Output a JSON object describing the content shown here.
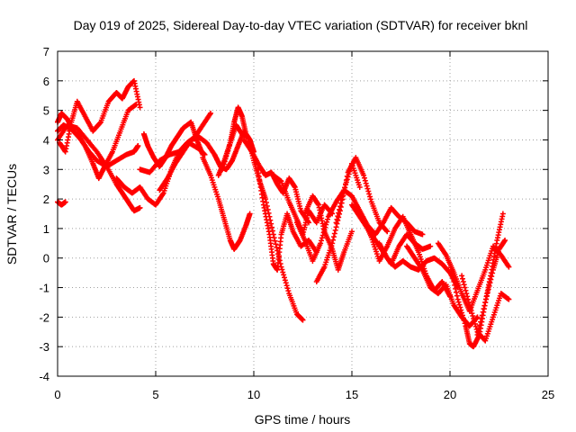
{
  "chart_data": {
    "type": "scatter",
    "title": "Day 019 of 2025, Sidereal Day-to-day VTEC variation (SDTVAR) for receiver bknl",
    "xlabel": "GPS time / hours",
    "ylabel": "SDTVAR / TECUs",
    "xlim": [
      0,
      25
    ],
    "ylim": [
      -4,
      7
    ],
    "xticks": [
      0,
      5,
      10,
      15,
      20,
      25
    ],
    "yticks": [
      -4,
      -3,
      -2,
      -1,
      0,
      1,
      2,
      3,
      4,
      5,
      6,
      7
    ],
    "grid": true,
    "marker": "+",
    "series": [
      {
        "name": "SDTVAR",
        "color": "#ff0000",
        "tracks": [
          {
            "x": [
              0.0,
              0.2,
              0.5,
              0.8,
              1.2,
              1.6,
              2.0,
              2.5,
              3.0,
              3.5,
              3.9,
              4.1
            ],
            "y": [
              4.6,
              4.9,
              4.7,
              4.3,
              4.0,
              3.6,
              3.3,
              3.1,
              3.3,
              3.5,
              3.6,
              3.8
            ]
          },
          {
            "x": [
              0.0,
              0.3,
              0.6,
              1.0,
              1.4,
              1.8,
              2.1,
              2.4,
              2.8,
              3.2,
              3.6,
              4.0
            ],
            "y": [
              4.3,
              4.5,
              4.4,
              4.2,
              3.8,
              3.2,
              2.7,
              3.1,
              3.6,
              4.3,
              5.0,
              5.2
            ]
          },
          {
            "x": [
              0.0,
              0.2,
              0.4
            ],
            "y": [
              1.9,
              1.8,
              1.9
            ]
          },
          {
            "x": [
              0.1,
              0.4,
              0.7,
              1.0,
              1.4,
              1.8,
              2.2,
              2.6,
              3.0,
              3.3,
              3.6,
              3.9,
              4.2
            ],
            "y": [
              3.9,
              3.6,
              4.6,
              5.3,
              4.8,
              4.3,
              4.6,
              5.3,
              5.6,
              5.4,
              5.8,
              6.0,
              5.1
            ]
          },
          {
            "x": [
              0.0,
              0.5,
              1.0,
              1.5,
              2.0,
              2.5,
              3.0,
              3.3,
              3.6,
              3.9,
              4.2
            ],
            "y": [
              4.0,
              4.5,
              4.4,
              4.0,
              3.6,
              3.1,
              2.5,
              2.2,
              1.9,
              1.6,
              1.7
            ]
          },
          {
            "x": [
              3.0,
              3.4,
              3.8,
              4.2,
              4.6,
              5.0,
              5.4,
              5.8,
              6.2,
              6.6,
              7.0,
              7.4,
              7.8
            ],
            "y": [
              2.7,
              2.4,
              2.2,
              2.4,
              2.0,
              1.8,
              2.2,
              3.0,
              3.6,
              3.9,
              4.1,
              4.5,
              4.9
            ]
          },
          {
            "x": [
              4.4,
              4.6,
              4.9,
              5.2,
              5.5,
              5.8,
              6.1,
              6.4,
              6.8,
              7.1,
              7.4
            ],
            "y": [
              4.2,
              3.8,
              3.4,
              3.1,
              3.4,
              3.8,
              4.1,
              4.4,
              4.6,
              4.0,
              3.5
            ]
          },
          {
            "x": [
              4.2,
              4.7,
              5.2,
              5.7,
              6.2,
              6.7,
              7.2,
              7.5
            ],
            "y": [
              3.0,
              2.9,
              3.3,
              3.5,
              3.6,
              3.9,
              3.7,
              3.5
            ]
          },
          {
            "x": [
              5.2,
              5.6,
              6.0,
              6.4,
              6.8,
              7.2,
              7.6,
              8.0,
              8.3,
              8.6,
              8.9,
              9.2,
              9.5
            ],
            "y": [
              2.3,
              2.7,
              3.2,
              3.6,
              4.0,
              4.1,
              3.9,
              3.5,
              3.1,
              3.0,
              3.3,
              3.8,
              4.3
            ]
          },
          {
            "x": [
              7.4,
              7.8,
              8.2,
              8.5,
              8.8,
              9.0,
              9.3,
              9.6,
              9.8
            ],
            "y": [
              3.4,
              2.8,
              2.0,
              1.3,
              0.6,
              0.3,
              0.6,
              1.1,
              1.5
            ]
          },
          {
            "x": [
              8.2,
              8.5,
              8.8,
              9.0,
              9.2,
              9.4,
              9.6,
              9.8,
              10.0
            ],
            "y": [
              2.8,
              3.3,
              3.9,
              4.6,
              5.1,
              4.8,
              4.2,
              4.0,
              3.6
            ]
          },
          {
            "x": [
              8.4,
              8.8,
              9.1,
              9.4,
              9.7,
              10.0,
              10.3,
              10.6,
              11.0,
              11.4,
              11.8,
              12.2,
              12.5
            ],
            "y": [
              3.0,
              3.9,
              4.5,
              4.2,
              4.1,
              3.3,
              2.6,
              2.0,
              0.8,
              -0.3,
              -1.2,
              -1.9,
              -2.1
            ]
          },
          {
            "x": [
              9.5,
              9.9,
              10.3,
              10.6,
              10.9,
              11.2,
              11.5,
              11.8,
              12.1,
              12.4,
              12.8
            ],
            "y": [
              4.0,
              3.6,
              3.1,
              2.8,
              2.9,
              2.5,
              2.2,
              2.7,
              2.4,
              1.6,
              1.2
            ]
          },
          {
            "x": [
              10.2,
              10.5,
              10.8,
              11.0,
              11.2,
              11.4,
              11.7,
              12.0,
              12.4,
              12.8,
              13.2
            ],
            "y": [
              3.0,
              1.8,
              0.8,
              -0.2,
              -0.4,
              0.8,
              1.5,
              0.9,
              0.4,
              0.6,
              0.2
            ]
          },
          {
            "x": [
              11.0,
              11.4,
              11.8,
              12.2,
              12.5,
              12.8,
              13.2,
              13.6,
              14.0
            ],
            "y": [
              2.8,
              2.6,
              1.9,
              1.3,
              0.8,
              1.6,
              1.2,
              1.8,
              1.5
            ]
          },
          {
            "x": [
              12.2,
              12.6,
              13.0,
              13.4,
              13.8,
              14.2,
              14.6,
              15.0,
              15.4
            ],
            "y": [
              1.2,
              0.6,
              -0.1,
              0.5,
              1.4,
              1.9,
              2.3,
              3.2,
              2.4
            ]
          },
          {
            "x": [
              12.6,
              13.0,
              13.3,
              13.6,
              14.0,
              14.3,
              14.6,
              15.0
            ],
            "y": [
              1.5,
              2.1,
              1.8,
              0.9,
              0.3,
              -0.4,
              0.2,
              0.9
            ]
          },
          {
            "x": [
              13.2,
              13.6,
              14.0,
              14.4,
              14.8,
              15.2,
              15.6,
              16.0,
              16.4,
              16.8
            ],
            "y": [
              -0.8,
              -0.3,
              0.5,
              1.6,
              2.9,
              3.4,
              2.8,
              1.9,
              1.2,
              0.9
            ]
          },
          {
            "x": [
              14.2,
              14.6,
              15.0,
              15.4,
              15.8,
              16.2,
              16.6,
              17.0,
              17.4,
              17.8,
              18.2,
              18.6
            ],
            "y": [
              1.2,
              2.3,
              2.1,
              1.6,
              1.1,
              0.8,
              1.2,
              1.7,
              1.4,
              1.2,
              0.9,
              0.8
            ]
          },
          {
            "x": [
              15.0,
              15.4,
              15.8,
              16.2,
              16.6,
              17.0,
              17.4,
              17.8,
              18.2,
              18.6,
              19.0
            ],
            "y": [
              1.8,
              1.4,
              1.0,
              0.6,
              0.2,
              -0.2,
              0.4,
              0.8,
              0.5,
              0.3,
              0.4
            ]
          },
          {
            "x": [
              15.6,
              16.0,
              16.4,
              16.8,
              17.2,
              17.6,
              18.0,
              18.4,
              18.8,
              19.2,
              19.6,
              20.0
            ],
            "y": [
              1.3,
              0.7,
              -0.1,
              0.4,
              1.0,
              1.4,
              0.8,
              0.2,
              -0.6,
              -1.1,
              -0.8,
              -1.3
            ]
          },
          {
            "x": [
              16.4,
              16.8,
              17.2,
              17.6,
              18.0,
              18.4,
              18.8,
              19.2,
              19.6,
              20.0,
              20.4
            ],
            "y": [
              0.5,
              0.0,
              -0.3,
              -0.1,
              -0.3,
              -0.4,
              -0.1,
              0.0,
              -0.2,
              -0.5,
              -1.0
            ]
          },
          {
            "x": [
              17.8,
              18.2,
              18.6,
              19.0,
              19.4,
              19.8,
              20.2,
              20.6,
              21.0,
              21.4
            ],
            "y": [
              0.4,
              0.0,
              -0.4,
              -1.0,
              -1.2,
              -0.9,
              -1.6,
              -2.0,
              -2.3,
              -2.0
            ]
          },
          {
            "x": [
              19.4,
              19.8,
              20.2,
              20.6,
              21.0,
              21.4,
              21.8,
              22.2,
              22.6,
              23.0
            ],
            "y": [
              0.5,
              0.1,
              -0.5,
              -1.2,
              -1.8,
              -1.1,
              -0.4,
              0.4,
              0.1,
              -0.3
            ]
          },
          {
            "x": [
              20.0,
              20.4,
              20.8,
              21.0,
              21.2,
              21.5,
              21.8,
              22.1,
              22.4,
              22.7
            ],
            "y": [
              -0.2,
              -1.4,
              -2.3,
              -2.9,
              -3.0,
              -2.6,
              -1.5,
              -0.5,
              0.6,
              1.5
            ]
          },
          {
            "x": [
              20.6,
              21.0,
              21.4,
              21.8,
              22.2,
              22.6,
              23.0
            ],
            "y": [
              -0.6,
              -1.6,
              -2.5,
              -2.8,
              -2.0,
              -1.2,
              -1.4
            ]
          },
          {
            "x": [
              21.4,
              21.8,
              22.2,
              22.5,
              22.8
            ],
            "y": [
              -2.6,
              -1.5,
              -0.4,
              0.3,
              0.6
            ]
          }
        ]
      }
    ]
  }
}
